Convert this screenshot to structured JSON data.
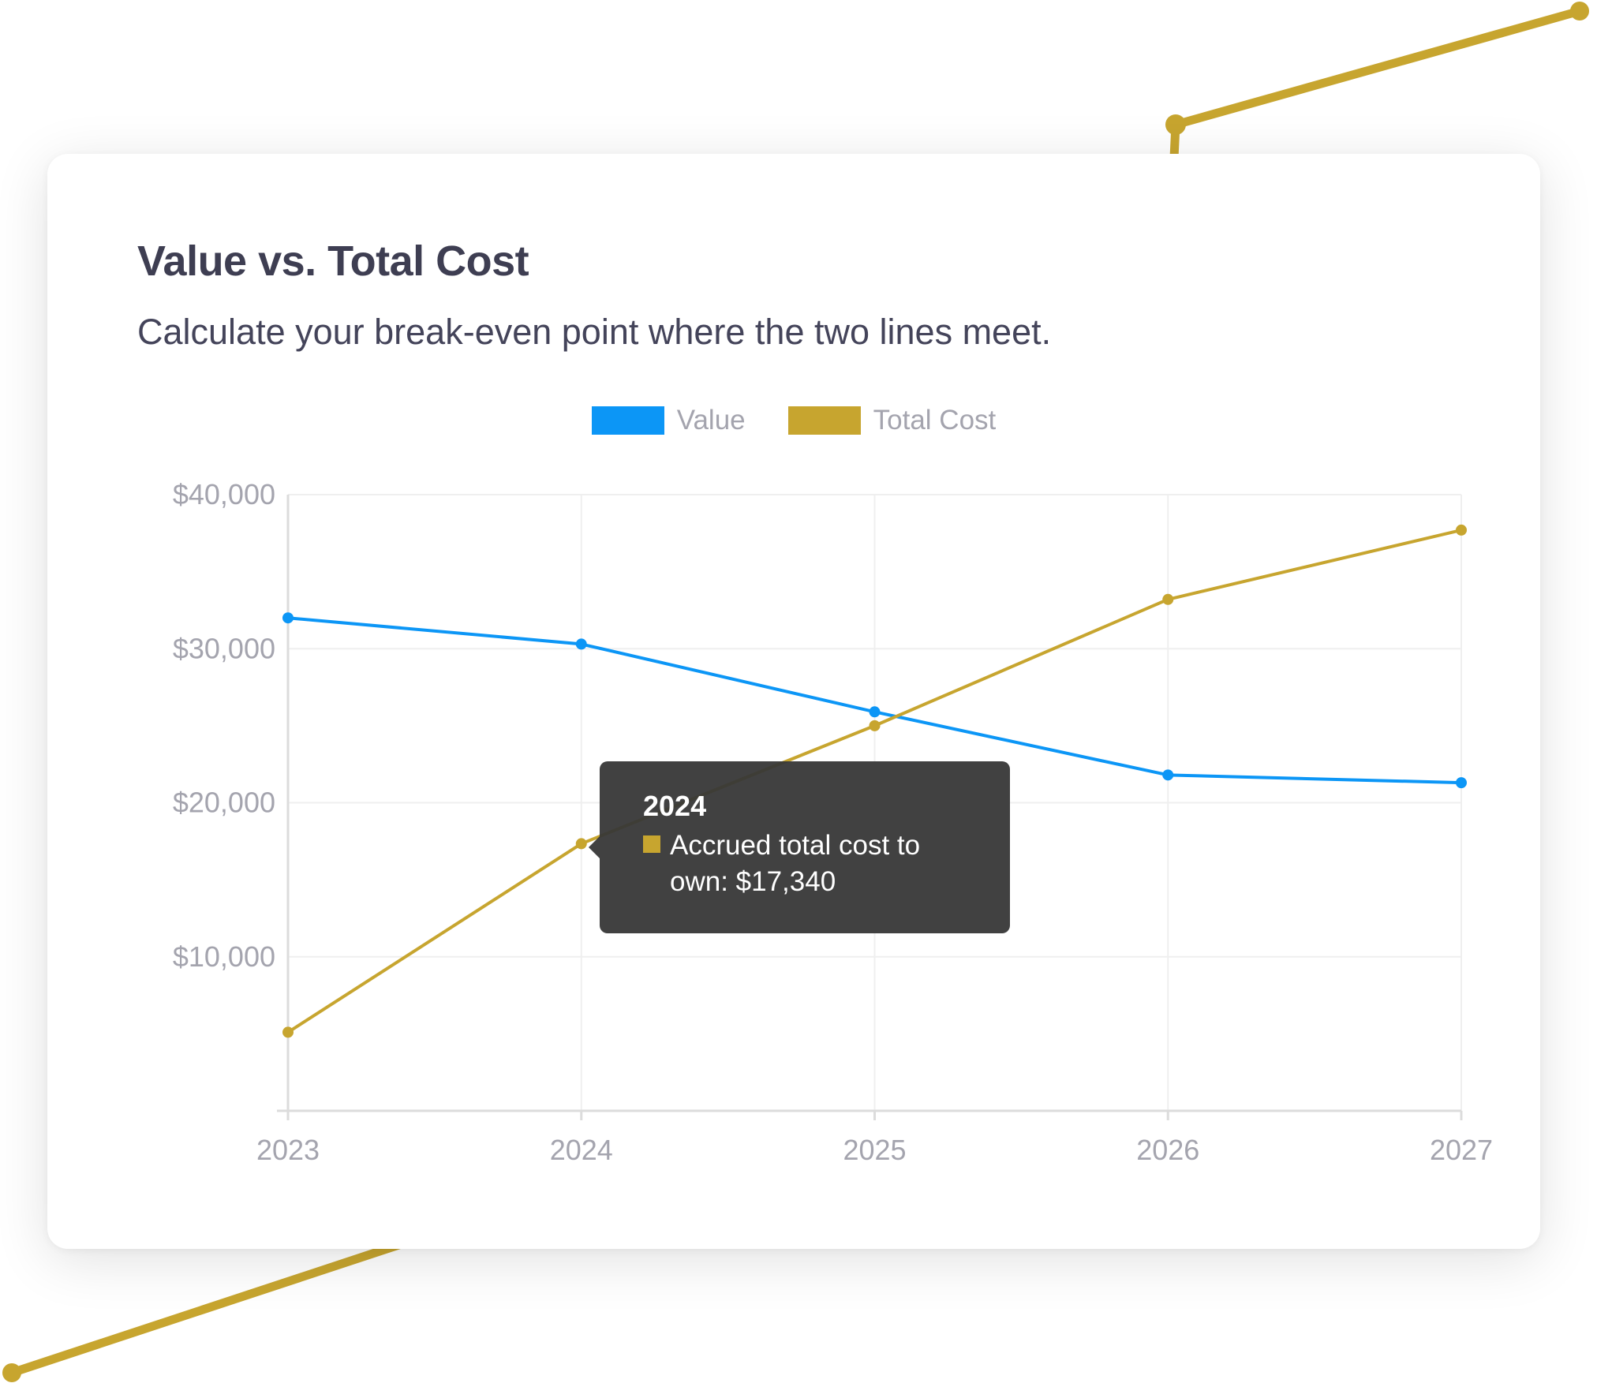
{
  "card": {
    "title": "Value vs. Total Cost",
    "subtitle": "Calculate your break-even point where the two lines meet."
  },
  "colors": {
    "value": "#0c96f6",
    "total_cost": "#c7a52f",
    "grid": "#efefef",
    "axis": "#dcdcdc",
    "tick_label": "#a4a4ae"
  },
  "chart_data": {
    "type": "line",
    "title": "Value vs. Total Cost",
    "subtitle": "Calculate your break-even point where the two lines meet.",
    "xlabel": "",
    "ylabel": "",
    "categories": [
      "2023",
      "2024",
      "2025",
      "2026",
      "2027"
    ],
    "y_ticks": [
      10000,
      20000,
      30000,
      40000
    ],
    "y_tick_labels": [
      "$10,000",
      "$20,000",
      "$30,000",
      "$40,000"
    ],
    "ylim": [
      0,
      40000
    ],
    "grid": true,
    "legend_position": "top-center",
    "series": [
      {
        "name": "Value",
        "color": "#0c96f6",
        "values": [
          32000,
          30300,
          25900,
          21800,
          21300
        ]
      },
      {
        "name": "Total Cost",
        "color": "#c7a52f",
        "values": [
          5100,
          17340,
          25000,
          33200,
          37700
        ]
      }
    ],
    "tooltip": {
      "category": "2024",
      "label": "Accrued total cost to own: $17,340"
    }
  }
}
